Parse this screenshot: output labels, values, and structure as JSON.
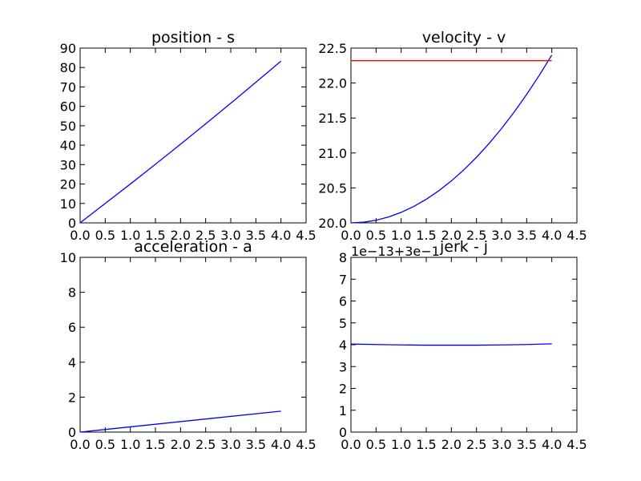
{
  "figure": {
    "background": "#ffffff"
  },
  "chart_data": [
    {
      "type": "line",
      "title": "position - s",
      "xlabel": "",
      "ylabel": "",
      "xlim": [
        0,
        4.5
      ],
      "ylim": [
        0,
        90
      ],
      "x_ticks": [
        "0.0",
        "0.5",
        "1.0",
        "1.5",
        "2.0",
        "2.5",
        "3.0",
        "3.5",
        "4.0",
        "4.5"
      ],
      "y_ticks": [
        "0",
        "10",
        "20",
        "30",
        "40",
        "50",
        "60",
        "70",
        "80",
        "90"
      ],
      "offset_text": "",
      "grid": false,
      "series": [
        {
          "color": "#0000ff",
          "x": [
            0,
            0.5,
            1.0,
            1.5,
            2.0,
            2.5,
            3.0,
            3.5,
            4.0
          ],
          "y": [
            0,
            10.0,
            20.0,
            30.2,
            40.5,
            51.0,
            61.6,
            72.4,
            83.3
          ]
        }
      ]
    },
    {
      "type": "line",
      "title": "velocity - v",
      "xlabel": "",
      "ylabel": "",
      "xlim": [
        0,
        4.5
      ],
      "ylim": [
        20.0,
        22.5
      ],
      "x_ticks": [
        "0.0",
        "0.5",
        "1.0",
        "1.5",
        "2.0",
        "2.5",
        "3.0",
        "3.5",
        "4.0",
        "4.5"
      ],
      "y_ticks": [
        "20.0",
        "20.5",
        "21.0",
        "21.5",
        "22.0",
        "22.5"
      ],
      "offset_text": "",
      "grid": false,
      "series": [
        {
          "color": "#0000ff",
          "x": [
            0,
            0.25,
            0.5,
            0.75,
            1.0,
            1.25,
            1.5,
            1.75,
            2.0,
            2.25,
            2.5,
            2.75,
            3.0,
            3.25,
            3.5,
            3.75,
            4.0
          ],
          "y": [
            20.0,
            20.0094,
            20.0375,
            20.0844,
            20.15,
            20.2344,
            20.3375,
            20.4594,
            20.6,
            20.7594,
            20.9375,
            21.1344,
            21.35,
            21.5844,
            21.8375,
            22.1094,
            22.4
          ]
        },
        {
          "color": "#ff0000",
          "x": [
            0,
            4.0
          ],
          "y": [
            22.32,
            22.32
          ]
        }
      ]
    },
    {
      "type": "line",
      "title": "acceleration - a",
      "xlabel": "",
      "ylabel": "",
      "xlim": [
        0,
        4.5
      ],
      "ylim": [
        0,
        10
      ],
      "x_ticks": [
        "0.0",
        "0.5",
        "1.0",
        "1.5",
        "2.0",
        "2.5",
        "3.0",
        "3.5",
        "4.0",
        "4.5"
      ],
      "y_ticks": [
        "0",
        "2",
        "4",
        "6",
        "8",
        "10"
      ],
      "offset_text": "",
      "grid": false,
      "series": [
        {
          "color": "#0000ff",
          "x": [
            0,
            4.0
          ],
          "y": [
            0,
            1.2
          ]
        }
      ]
    },
    {
      "type": "line",
      "title": "jerk - j",
      "xlabel": "",
      "ylabel": "",
      "xlim": [
        0,
        4.5
      ],
      "ylim": [
        0,
        8
      ],
      "x_ticks": [
        "0.0",
        "0.5",
        "1.0",
        "1.5",
        "2.0",
        "2.5",
        "3.0",
        "3.5",
        "4.0",
        "4.5"
      ],
      "y_ticks": [
        "0",
        "1",
        "2",
        "3",
        "4",
        "5",
        "6",
        "7",
        "8"
      ],
      "offset_text": "1e−13+3e−1",
      "grid": false,
      "series": [
        {
          "color": "#0000ff",
          "x": [
            0,
            0.5,
            1.0,
            1.5,
            2.0,
            2.5,
            3.0,
            3.5,
            4.0
          ],
          "y": [
            4.03,
            4.01,
            3.99,
            3.98,
            3.98,
            3.98,
            3.99,
            4.01,
            4.04
          ]
        }
      ]
    }
  ]
}
